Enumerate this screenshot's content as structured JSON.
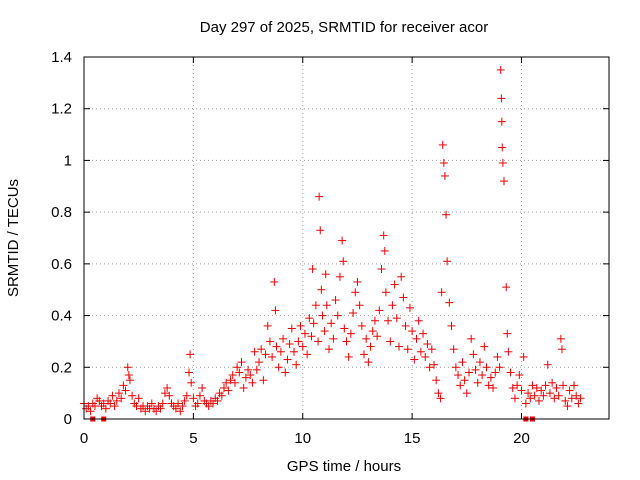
{
  "chart_data": {
    "type": "scatter",
    "title": "Day 297 of 2025, SRMTID for receiver acor",
    "xlabel": "GPS time / hours",
    "ylabel": "SRMTID / TECUs",
    "xlim": [
      0,
      24
    ],
    "ylim": [
      0,
      1.4
    ],
    "x_ticks": [
      0,
      5,
      10,
      15,
      20
    ],
    "x_tick_labels": [
      "0",
      "5",
      "10",
      "15",
      "20"
    ],
    "y_ticks": [
      0,
      0.2,
      0.4,
      0.6,
      0.8,
      1.0,
      1.2,
      1.4
    ],
    "y_tick_labels": [
      "0",
      "0.2",
      "0.4",
      "0.6",
      "0.8",
      "1",
      "1.2",
      "1.4"
    ],
    "grid": true,
    "marker": "plus",
    "series_color": "#ee0000",
    "series": [
      {
        "name": "SRMTID",
        "points": [
          [
            0.0,
            0.06
          ],
          [
            0.1,
            0.04
          ],
          [
            0.2,
            0.05
          ],
          [
            0.3,
            0.03
          ],
          [
            0.4,
            0.06
          ],
          [
            0.5,
            0.05
          ],
          [
            0.6,
            0.08
          ],
          [
            0.7,
            0.07
          ],
          [
            0.8,
            0.05
          ],
          [
            0.9,
            0.06
          ],
          [
            1.0,
            0.04
          ],
          [
            1.1,
            0.07
          ],
          [
            1.2,
            0.06
          ],
          [
            1.3,
            0.09
          ],
          [
            1.4,
            0.05
          ],
          [
            1.5,
            0.07
          ],
          [
            1.6,
            0.1
          ],
          [
            1.7,
            0.08
          ],
          [
            1.8,
            0.13
          ],
          [
            1.9,
            0.11
          ],
          [
            2.0,
            0.2
          ],
          [
            2.05,
            0.17
          ],
          [
            2.1,
            0.15
          ],
          [
            2.2,
            0.09
          ],
          [
            2.3,
            0.06
          ],
          [
            2.4,
            0.05
          ],
          [
            2.5,
            0.08
          ],
          [
            2.6,
            0.04
          ],
          [
            2.7,
            0.05
          ],
          [
            2.8,
            0.03
          ],
          [
            2.9,
            0.05
          ],
          [
            3.0,
            0.04
          ],
          [
            3.1,
            0.06
          ],
          [
            3.2,
            0.04
          ],
          [
            3.3,
            0.03
          ],
          [
            3.4,
            0.05
          ],
          [
            3.5,
            0.04
          ],
          [
            3.6,
            0.06
          ],
          [
            3.7,
            0.1
          ],
          [
            3.8,
            0.12
          ],
          [
            3.9,
            0.09
          ],
          [
            4.0,
            0.06
          ],
          [
            4.1,
            0.05
          ],
          [
            4.2,
            0.04
          ],
          [
            4.3,
            0.06
          ],
          [
            4.4,
            0.03
          ],
          [
            4.5,
            0.05
          ],
          [
            4.6,
            0.07
          ],
          [
            4.7,
            0.09
          ],
          [
            4.8,
            0.18
          ],
          [
            4.85,
            0.25
          ],
          [
            4.9,
            0.14
          ],
          [
            5.0,
            0.08
          ],
          [
            5.1,
            0.05
          ],
          [
            5.2,
            0.06
          ],
          [
            5.3,
            0.09
          ],
          [
            5.4,
            0.12
          ],
          [
            5.5,
            0.07
          ],
          [
            5.6,
            0.06
          ],
          [
            5.7,
            0.05
          ],
          [
            5.8,
            0.07
          ],
          [
            5.9,
            0.06
          ],
          [
            6.0,
            0.08
          ],
          [
            6.1,
            0.07
          ],
          [
            6.2,
            0.1
          ],
          [
            6.3,
            0.09
          ],
          [
            6.4,
            0.12
          ],
          [
            6.5,
            0.14
          ],
          [
            6.6,
            0.11
          ],
          [
            6.7,
            0.15
          ],
          [
            6.8,
            0.17
          ],
          [
            6.9,
            0.14
          ],
          [
            7.0,
            0.2
          ],
          [
            7.1,
            0.18
          ],
          [
            7.2,
            0.22
          ],
          [
            7.3,
            0.12
          ],
          [
            7.4,
            0.16
          ],
          [
            7.5,
            0.19
          ],
          [
            7.6,
            0.17
          ],
          [
            7.7,
            0.14
          ],
          [
            7.8,
            0.26
          ],
          [
            7.9,
            0.19
          ],
          [
            8.0,
            0.22
          ],
          [
            8.1,
            0.27
          ],
          [
            8.2,
            0.15
          ],
          [
            8.3,
            0.25
          ],
          [
            8.4,
            0.36
          ],
          [
            8.5,
            0.3
          ],
          [
            8.6,
            0.24
          ],
          [
            8.7,
            0.53
          ],
          [
            8.75,
            0.42
          ],
          [
            8.8,
            0.28
          ],
          [
            8.9,
            0.2
          ],
          [
            9.0,
            0.26
          ],
          [
            9.1,
            0.31
          ],
          [
            9.2,
            0.18
          ],
          [
            9.3,
            0.23
          ],
          [
            9.4,
            0.29
          ],
          [
            9.5,
            0.35
          ],
          [
            9.6,
            0.26
          ],
          [
            9.7,
            0.21
          ],
          [
            9.8,
            0.3
          ],
          [
            9.9,
            0.36
          ],
          [
            10.0,
            0.28
          ],
          [
            10.1,
            0.33
          ],
          [
            10.2,
            0.25
          ],
          [
            10.3,
            0.39
          ],
          [
            10.4,
            0.32
          ],
          [
            10.45,
            0.58
          ],
          [
            10.5,
            0.37
          ],
          [
            10.6,
            0.44
          ],
          [
            10.7,
            0.3
          ],
          [
            10.75,
            0.86
          ],
          [
            10.8,
            0.73
          ],
          [
            10.85,
            0.5
          ],
          [
            10.9,
            0.4
          ],
          [
            11.0,
            0.34
          ],
          [
            11.05,
            0.56
          ],
          [
            11.1,
            0.44
          ],
          [
            11.2,
            0.27
          ],
          [
            11.3,
            0.37
          ],
          [
            11.4,
            0.31
          ],
          [
            11.5,
            0.46
          ],
          [
            11.6,
            0.4
          ],
          [
            11.7,
            0.55
          ],
          [
            11.8,
            0.69
          ],
          [
            11.85,
            0.61
          ],
          [
            11.9,
            0.35
          ],
          [
            12.0,
            0.3
          ],
          [
            12.1,
            0.24
          ],
          [
            12.2,
            0.33
          ],
          [
            12.3,
            0.41
          ],
          [
            12.4,
            0.49
          ],
          [
            12.5,
            0.53
          ],
          [
            12.6,
            0.44
          ],
          [
            12.7,
            0.36
          ],
          [
            12.8,
            0.25
          ],
          [
            12.9,
            0.31
          ],
          [
            13.0,
            0.22
          ],
          [
            13.1,
            0.28
          ],
          [
            13.2,
            0.34
          ],
          [
            13.3,
            0.38
          ],
          [
            13.4,
            0.32
          ],
          [
            13.5,
            0.42
          ],
          [
            13.6,
            0.58
          ],
          [
            13.7,
            0.71
          ],
          [
            13.75,
            0.65
          ],
          [
            13.8,
            0.49
          ],
          [
            13.9,
            0.38
          ],
          [
            14.0,
            0.3
          ],
          [
            14.1,
            0.44
          ],
          [
            14.2,
            0.52
          ],
          [
            14.3,
            0.39
          ],
          [
            14.4,
            0.28
          ],
          [
            14.5,
            0.55
          ],
          [
            14.6,
            0.47
          ],
          [
            14.7,
            0.36
          ],
          [
            14.8,
            0.27
          ],
          [
            14.9,
            0.43
          ],
          [
            15.0,
            0.34
          ],
          [
            15.1,
            0.23
          ],
          [
            15.2,
            0.31
          ],
          [
            15.3,
            0.38
          ],
          [
            15.4,
            0.26
          ],
          [
            15.5,
            0.33
          ],
          [
            15.6,
            0.24
          ],
          [
            15.7,
            0.29
          ],
          [
            15.8,
            0.2
          ],
          [
            15.9,
            0.27
          ],
          [
            16.0,
            0.21
          ],
          [
            16.1,
            0.15
          ],
          [
            16.2,
            0.1
          ],
          [
            16.3,
            0.08
          ],
          [
            16.35,
            0.49
          ],
          [
            16.4,
            1.06
          ],
          [
            16.45,
            0.99
          ],
          [
            16.5,
            0.94
          ],
          [
            16.55,
            0.79
          ],
          [
            16.6,
            0.61
          ],
          [
            16.7,
            0.45
          ],
          [
            16.8,
            0.36
          ],
          [
            16.9,
            0.27
          ],
          [
            17.0,
            0.2
          ],
          [
            17.1,
            0.17
          ],
          [
            17.2,
            0.13
          ],
          [
            17.3,
            0.22
          ],
          [
            17.4,
            0.15
          ],
          [
            17.5,
            0.1
          ],
          [
            17.6,
            0.18
          ],
          [
            17.7,
            0.31
          ],
          [
            17.8,
            0.25
          ],
          [
            17.9,
            0.19
          ],
          [
            18.0,
            0.14
          ],
          [
            18.1,
            0.22
          ],
          [
            18.2,
            0.17
          ],
          [
            18.3,
            0.28
          ],
          [
            18.4,
            0.2
          ],
          [
            18.5,
            0.13
          ],
          [
            18.6,
            0.16
          ],
          [
            18.7,
            0.12
          ],
          [
            18.8,
            0.18
          ],
          [
            18.9,
            0.24
          ],
          [
            19.0,
            0.2
          ],
          [
            19.05,
            1.35
          ],
          [
            19.08,
            1.24
          ],
          [
            19.1,
            1.15
          ],
          [
            19.12,
            1.05
          ],
          [
            19.15,
            0.99
          ],
          [
            19.2,
            0.92
          ],
          [
            19.3,
            0.51
          ],
          [
            19.35,
            0.33
          ],
          [
            19.4,
            0.26
          ],
          [
            19.5,
            0.18
          ],
          [
            19.6,
            0.12
          ],
          [
            19.7,
            0.08
          ],
          [
            19.8,
            0.13
          ],
          [
            19.9,
            0.17
          ],
          [
            20.0,
            0.11
          ],
          [
            20.1,
            0.24
          ],
          [
            20.2,
            0.06
          ],
          [
            20.3,
            0.1
          ],
          [
            20.4,
            0.08
          ],
          [
            20.5,
            0.13
          ],
          [
            20.6,
            0.09
          ],
          [
            20.7,
            0.12
          ],
          [
            20.8,
            0.07
          ],
          [
            20.9,
            0.11
          ],
          [
            21.0,
            0.09
          ],
          [
            21.1,
            0.13
          ],
          [
            21.2,
            0.21
          ],
          [
            21.3,
            0.1
          ],
          [
            21.4,
            0.14
          ],
          [
            21.5,
            0.08
          ],
          [
            21.6,
            0.12
          ],
          [
            21.7,
            0.09
          ],
          [
            21.8,
            0.31
          ],
          [
            21.85,
            0.27
          ],
          [
            21.9,
            0.13
          ],
          [
            22.0,
            0.07
          ],
          [
            22.1,
            0.05
          ],
          [
            22.2,
            0.11
          ],
          [
            22.3,
            0.08
          ],
          [
            22.4,
            0.13
          ],
          [
            22.5,
            0.09
          ],
          [
            22.6,
            0.06
          ],
          [
            22.7,
            0.08
          ]
        ]
      }
    ],
    "baseline_points": [
      [
        0.4,
        0
      ],
      [
        0.9,
        0
      ],
      [
        20.2,
        0
      ],
      [
        20.5,
        0
      ]
    ]
  }
}
